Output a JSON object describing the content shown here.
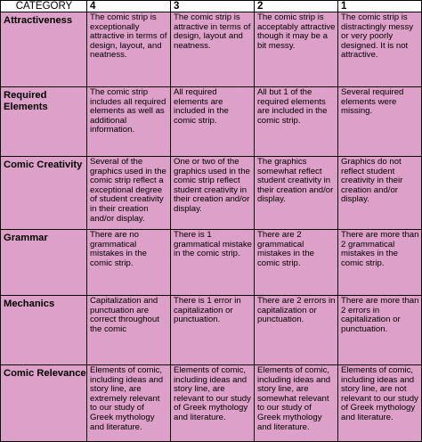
{
  "header": {
    "category": "CATEGORY",
    "scores": [
      "4",
      "3",
      "2",
      "1"
    ]
  },
  "rows": [
    {
      "category": "Attractiveness",
      "cells": [
        "The comic strip is exceptionally attractive in terms of design, layout, and neatness.",
        "The comic strip is attractive in terms of design, layout and neatness.",
        "The comic strip is acceptably attractive though it may be a bit messy.",
        "The comic strip is distractingly messy or very poorly designed. It is not attractive."
      ]
    },
    {
      "category": "Required Elements",
      "cells": [
        "The comic strip includes all required elements as well as additional information.",
        "All required elements are included in the comic strip.",
        "All but 1 of the required elements are included in the comic strip.",
        "Several required elements were missing."
      ]
    },
    {
      "category": "Comic Creativity",
      "cells": [
        "Several of the graphics used in the comic strip reflect a exceptional degree of student creativity in their creation and/or display.",
        "One or two of the graphics used in the comic strip reflect student creativity in their creation and/or display.",
        "The graphics somewhat reflect student creativity in their creation and/or display.",
        "Graphics do not reflect student creativity in their creation and/or display."
      ]
    },
    {
      "category": "Grammar",
      "cells": [
        "There are no grammatical mistakes in the comic strip.",
        "There is 1 grammatical mistake in the comic strip.",
        "There are 2 grammatical mistakes in the comic strip.",
        "There are more than 2 grammatical mistakes in the comic strip."
      ]
    },
    {
      "category": "Mechanics",
      "cells": [
        "Capitalization and punctuation are correct throughout the comic",
        "There is 1 error in capitalization or punctuation.",
        "There are 2 errors in capitalization or punctuation.",
        "There are more than 2 errors in capitalization or punctuation."
      ]
    },
    {
      "category": "Comic Relevance",
      "cells": [
        "Elements of comic, including ideas and story line, are extremely relevant to our study of Greek mythology and literature.",
        "Elements of comic, including ideas and story line, are relevant to our study of Greek mythology and literature.",
        "Elements of comic, including ideas and story line, are somewhat relevant to our study of Greek mythology and literature.",
        "Elements of comic, including ideas and story line, are not relevant to our study of Greek mythology and literature."
      ]
    }
  ]
}
